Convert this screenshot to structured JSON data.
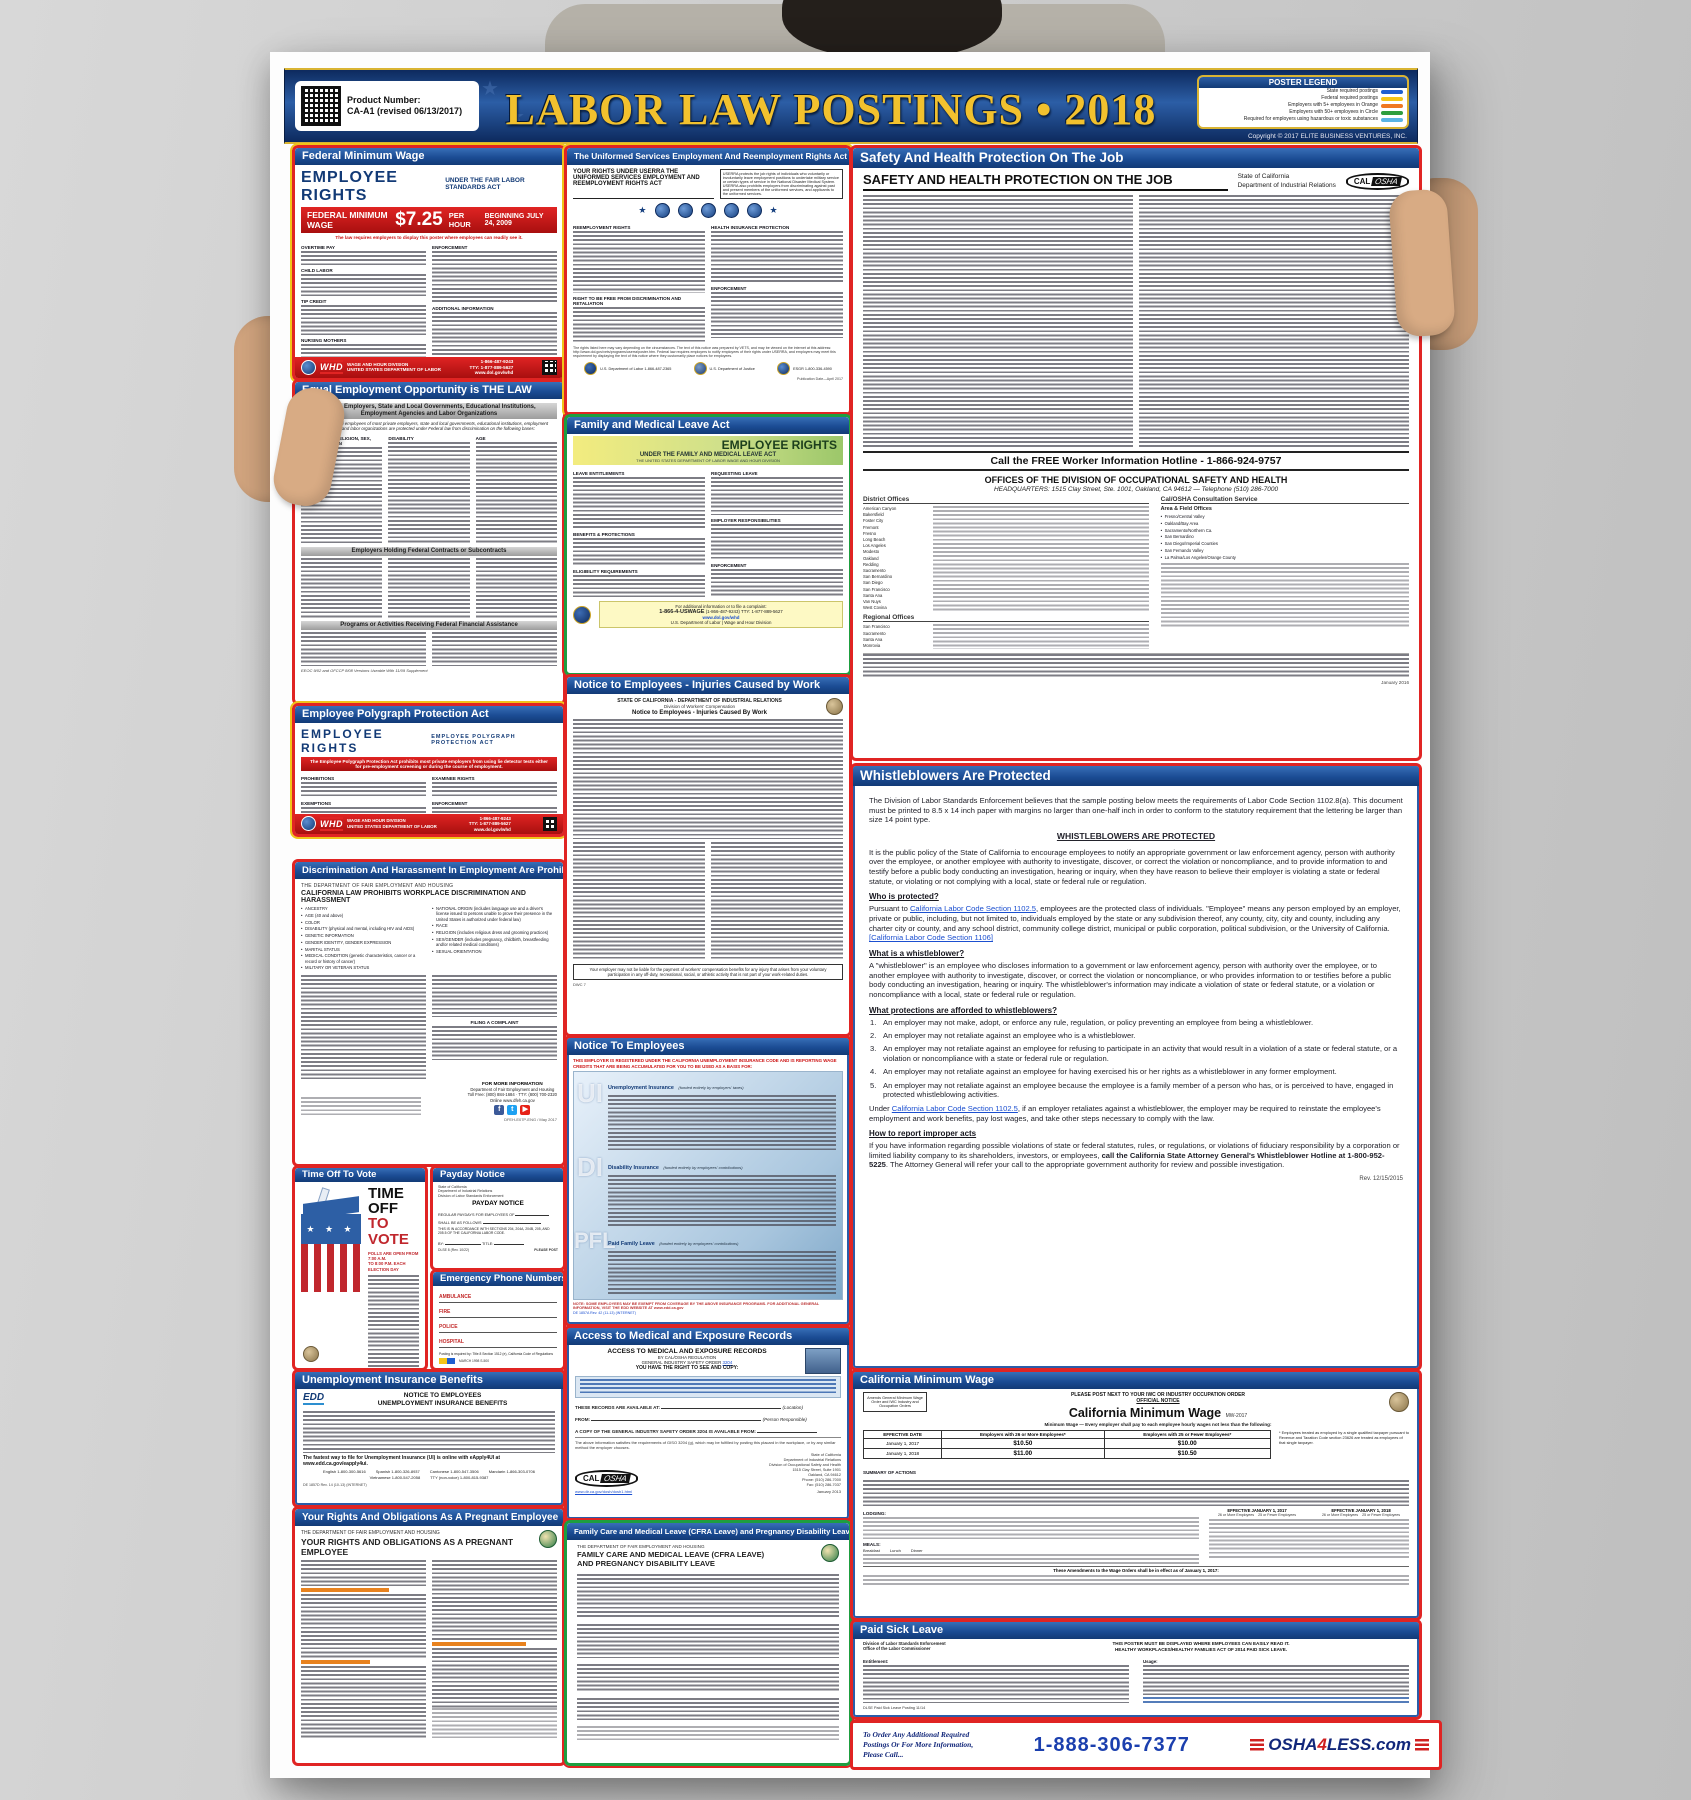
{
  "header": {
    "product_label": "Product Number:",
    "product_number": "CA-A1 (revised 06/13/2017)",
    "title": "LABOR LAW POSTINGS • 2018",
    "copyright": "Copyright © 2017 ELITE BUSINESS VENTURES, INC.",
    "legend": {
      "title": "POSTER LEGEND",
      "items": [
        {
          "label": "State required postings",
          "color": "#1f5fd0"
        },
        {
          "label": "Federal required postings",
          "color": "#f5c518"
        },
        {
          "label": "Employers with 5+ employees in Orange",
          "color": "#f07820"
        },
        {
          "label": "Employers with 50+ employees in Circle",
          "color": "#2e9e3e"
        },
        {
          "label": "Required for employers using hazardous or toxic substances",
          "color": "#5ab4e5"
        }
      ]
    }
  },
  "sections": {
    "fmw": {
      "title": "Federal Minimum Wage",
      "rights": "EMPLOYEE RIGHTS",
      "under": "UNDER THE FAIR LABOR STANDARDS ACT",
      "wage_label": "FEDERAL MINIMUM WAGE",
      "amount": "$7.25",
      "per": "PER HOUR",
      "beginning": "BEGINNING JULY 24, 2009",
      "note": "The law requires employers to display this poster where employees can readily see it.",
      "h_left": [
        "OVERTIME PAY",
        "CHILD LABOR",
        "TIP CREDIT",
        "NURSING MOTHERS"
      ],
      "h_right": [
        "ENFORCEMENT",
        "ADDITIONAL INFORMATION"
      ],
      "agency": "WAGE AND HOUR DIVISION",
      "dept": "UNITED STATES DEPARTMENT OF LABOR",
      "phone": "1-866-487-9243",
      "tty": "TTY: 1-877-889-5627",
      "web": "www.dol.gov/whd",
      "logo": "WHD"
    },
    "eeo": {
      "title": "Equal Employment Opportunity is THE LAW",
      "band1": "Private Employers, State and Local Governments, Educational Institutions, Employment Agencies and Labor Organizations",
      "intro": "Applicants to and employees of most private employers, state and local governments, educational institutions, employment agencies and labor organizations are protected under Federal law from discrimination on the following bases:",
      "h1": [
        "RACE, COLOR, RELIGION, SEX, NATIONAL ORIGIN",
        "DISABILITY",
        "AGE"
      ],
      "band2": "Employers Holding Federal Contracts or Subcontracts",
      "band3": "Programs or Activities Receiving Federal Financial Assistance",
      "footnote": "EEOC 9/02 and OFCCP 8/08 Versions Useable With 11/09 Supplement"
    },
    "poly": {
      "title": "Employee Polygraph Protection Act",
      "rights": "EMPLOYEE RIGHTS",
      "act": "EMPLOYEE POLYGRAPH PROTECTION ACT",
      "banner": "The Employee Polygraph Protection Act prohibits most private employers from using lie detector tests either for pre-employment screening or during the course of employment.",
      "h_left": [
        "PROHIBITIONS",
        "EXEMPTIONS"
      ],
      "h_right": [
        "EXAMINEE RIGHTS",
        "ENFORCEMENT"
      ],
      "display_note": "THE LAW REQUIRES EMPLOYERS TO DISPLAY THIS POSTER WHERE EMPLOYEES AND JOB APPLICANTS CAN READILY SEE IT.",
      "agency": "WAGE AND HOUR DIVISION",
      "dept": "UNITED STATES DEPARTMENT OF LABOR",
      "phone": "1-866-487-9243",
      "tty": "TTY: 1-877-889-5627",
      "web": "www.dol.gov/whd",
      "logo": "WHD"
    },
    "disc": {
      "title": "Discrimination And Harassment In Employment Are Prohibited By Law",
      "dept": "THE DEPARTMENT OF FAIR EMPLOYMENT AND HOUSING",
      "heading": "CALIFORNIA LAW PROHIBITS WORKPLACE DISCRIMINATION AND HARASSMENT",
      "bullets_a": [
        "ANCESTRY",
        "AGE (40 and above)",
        "COLOR",
        "DISABILITY (physical and mental, including HIV and AIDS)",
        "GENETIC INFORMATION",
        "GENDER IDENTITY, GENDER EXPRESSION",
        "MARITAL STATUS",
        "MEDICAL CONDITION (genetic characteristics, cancer or a record or history of cancer)",
        "MILITARY OR VETERAN STATUS"
      ],
      "bullets_b": [
        "NATIONAL ORIGIN (includes language use and a driver's license issued to persons unable to prove their presence in the United States is authorized under federal law)",
        "RACE",
        "RELIGION (includes religious dress and grooming practices)",
        "SEX/GENDER (includes pregnancy, childbirth, breastfeeding and/or related medical conditions)",
        "SEXUAL ORIENTATION"
      ],
      "filing": "FILING A COMPLAINT",
      "info_title": "FOR MORE INFORMATION",
      "info1": "Department of Fair Employment and Housing",
      "info2": "Toll Free: (800) 884-1684",
      "info3": "TTY: (800) 700-2320",
      "info4": "Online www.dfeh.ca.gov",
      "code": "DFEH-E07P-ENG / May 2017"
    },
    "vote": {
      "title": "Time Off To Vote",
      "big1": "TIME OFF",
      "big2": "TO VOTE",
      "polls1": "POLLS ARE OPEN FROM 7:00 A.M.",
      "polls2": "TO 8:00 P.M. EACH ELECTION DAY"
    },
    "payday": {
      "title": "Payday Notice",
      "s1": "State of California",
      "s2": "Department of Industrial Relations",
      "s3": "Division of Labor Standards Enforcement",
      "heading": "PAYDAY NOTICE",
      "line1": "REGULAR PAYDAYS",
      "line1b": "FOR EMPLOYEES OF",
      "line2": "SHALL BE AS FOLLOWS",
      "accordance": "THIS IS IN ACCORDANCE WITH SECTIONS 204, 204A, 204B, 205, AND 205.5 OF THE CALIFORNIA LABOR CODE.",
      "by": "BY:",
      "title_label": "TITLE:",
      "code": "DLSE 8 (Rev. 10/22)",
      "post": "PLEASE POST"
    },
    "emergency": {
      "title": "Emergency Phone Numbers",
      "labels": [
        "AMBULANCE",
        "FIRE",
        "POLICE",
        "HOSPITAL"
      ],
      "note": "Posting is required by: Title 8 Section 1512 (e), California Code of Regulations",
      "code": "MARCH 1998 S-500"
    },
    "unemp": {
      "title": "Unemployment Insurance Benefits",
      "logo": "EDD",
      "heading1": "NOTICE TO EMPLOYEES",
      "heading2": "UNEMPLOYMENT INSURANCE BENEFITS",
      "fastest": "The fastest way to file for Unemployment Insurance (UI) is online with eApply4UI at www.edd.ca.gov/eapply4ui.",
      "phones": [
        "English 1-800-300-5616",
        "Spanish 1-800-326-8937",
        "Cantonese 1-800-547-3506",
        "Mandarin 1-866-303-0706",
        "Vietnamese 1-800-547-2058",
        "TTY (non-voice) 1-800-815-9387"
      ],
      "code": "DE 1857D Rev. 14 (10-13) (INTERNET)"
    },
    "preg": {
      "title": "Your Rights And Obligations As A Pregnant Employee",
      "dept": "THE DEPARTMENT OF FAIR EMPLOYMENT AND HOUSING",
      "heading": "YOUR RIGHTS AND OBLIGATIONS AS A PREGNANT EMPLOYEE"
    },
    "userra": {
      "title": "The Uniformed Services Employment And Reemployment Rights Act",
      "heading": "YOUR RIGHTS UNDER USERRA THE UNIFORMED SERVICES EMPLOYMENT AND REEMPLOYMENT RIGHTS ACT",
      "box": "USERRA protects the job rights of individuals who voluntarily or involuntarily leave employment positions to undertake military service or certain types of service in the National Disaster Medical System. USERRA also prohibits employers from discriminating against past and present members of the uniformed services, and applicants to the uniformed services.",
      "h_left": [
        "REEMPLOYMENT RIGHTS",
        "RIGHT TO BE FREE FROM DISCRIMINATION AND RETALIATION"
      ],
      "h_right": [
        "HEALTH INSURANCE PROTECTION",
        "ENFORCEMENT"
      ],
      "note": "The rights listed here may vary depending on the circumstances. The text of this notice was prepared by VETS, and may be viewed on the internet at this address: http://www.dol.gov/vets/programs/userra/poster.htm. Federal law requires employers to notify employees of their rights under USERRA, and employers may meet this requirement by displaying the text of this notice where they customarily place notices for employees.",
      "seal1": "U.S. Department of Labor 1-866-487-2365",
      "seal2": "U.S. Department of Justice",
      "seal3": "ESGR 1-800-336-4590",
      "pub": "Publication Date—April 2017"
    },
    "fmla": {
      "title": "Family and Medical Leave Act",
      "rights": "EMPLOYEE RIGHTS",
      "under": "UNDER THE FAMILY AND MEDICAL LEAVE ACT",
      "dept": "THE UNITED STATES DEPARTMENT OF LABOR WAGE AND HOUR DIVISION",
      "h_left": [
        "LEAVE ENTITLEMENTS",
        "BENEFITS & PROTECTIONS",
        "ELIGIBILITY REQUIREMENTS"
      ],
      "h_right": [
        "REQUESTING LEAVE",
        "EMPLOYER RESPONSIBILITIES",
        "ENFORCEMENT"
      ],
      "contact_lead": "For additional information or to file a complaint:",
      "phone": "1-866-4-USWAGE",
      "phone2": "(1-866-487-9243)  TTY: 1-877-889-5627",
      "web": "www.dol.gov/whd",
      "dol": "U.S. Department of Labor | Wage and Hour Division"
    },
    "injuries": {
      "title": "Notice to Employees - Injuries Caused by Work",
      "state": "STATE OF CALIFORNIA - DEPARTMENT OF INDUSTRIAL RELATIONS",
      "division": "Division of Workers' Compensation",
      "heading": "Notice to Employees - Injuries Caused By Work",
      "box": "Your employer may not be liable for the payment of workers' compensation benefits for any injury that arises from your voluntary participation in any off-duty, recreational, social, or athletic activity that is not part of your work-related duties.",
      "code": "DWC 7"
    },
    "edd": {
      "title": "Notice To Employees",
      "reg_line": "THIS EMPLOYER IS REGISTERED UNDER THE CALIFORNIA UNEMPLOYMENT INSURANCE CODE AND IS REPORTING WAGE CREDITS THAT ARE BEING ACCUMULATED FOR YOU TO BE USED AS A BASIS FOR:",
      "items": [
        {
          "abbr": "UI",
          "name": "Unemployment Insurance",
          "fund": "(funded entirely by employers' taxes)"
        },
        {
          "abbr": "DI",
          "name": "Disability Insurance",
          "fund": "(funded entirely by employees' contributions)"
        },
        {
          "abbr": "PFL",
          "name": "Paid Family Leave",
          "fund": "(funded entirely by employees' contributions)"
        }
      ],
      "note": "NOTE: SOME EMPLOYEES MAY BE EXEMPT FROM COVERAGE BY THE ABOVE INSURANCE PROGRAMS. FOR ADDITIONAL GENERAL INFORMATION, VISIT THE EDD WEBSITE AT www.edd.ca.gov",
      "code": "DE 1857A Rev. 42 (11-13) (INTERNET)"
    },
    "access": {
      "title": "Access to Medical and Exposure Records",
      "h1": "ACCESS TO MEDICAL AND EXPOSURE RECORDS",
      "h2": "BY CAL/OSHA REGULATION",
      "h3a": "GENERAL INDUSTRY SAFETY ORDER",
      "h3link": "3204",
      "h4": "YOU HAVE THE RIGHT TO SEE AND COPY:",
      "form1": "THESE RECORDS ARE AVAILABLE AT:",
      "loc": "(Location)",
      "form2": "FROM:",
      "resp": "(Person Responsible)",
      "form3": "A COPY OF THE GENERAL INDUSTRY SAFETY ORDER 3204 IS AVAILABLE FROM:",
      "note": "The above information satisfies the requirements of GISO 3204 (g), which may be fulfilled by posting this placard in the workplace, or by any similar method the employer chooses.",
      "agency": [
        "State of California",
        "Department of Industrial Relations",
        "Division of Occupational Safety and Health",
        "1515 Clay Street, Suite 1901",
        "Oakland, CA 94612",
        "Phone: (510) 286-7000",
        "Fax: (510) 286-7037"
      ],
      "web": "www.dir.ca.gov/dosh/dosh1.html",
      "date": "January 2013"
    },
    "cfra": {
      "title": "Family Care and Medical Leave (CFRA Leave) and Pregnancy Disability Leave",
      "dept": "THE DEPARTMENT OF FAIR EMPLOYMENT AND HOUSING",
      "heading1": "FAMILY CARE AND MEDICAL LEAVE (CFRA LEAVE)",
      "heading2": "AND PREGNANCY DISABILITY LEAVE"
    },
    "safety": {
      "title": "Safety And Health Protection On The Job",
      "heading": "SAFETY AND HEALTH PROTECTION ON THE JOB",
      "state1": "State of California",
      "state2": "Department of Industrial Relations",
      "cal": "CAL",
      "osha": "OSHA",
      "hotline": "Call the FREE Worker Information Hotline - 1-866-924-9757",
      "offices_title": "OFFICES OF THE DIVISION OF OCCUPATIONAL SAFETY AND HEALTH",
      "hq": "HEADQUARTERS: 1515 Clay Street, Ste. 1001, Oakland, CA 94612 — Telephone (510) 286-7000",
      "district_label": "District Offices",
      "consult_label": "Cal/OSHA Consultation Service",
      "area_label": "Area & Field Offices",
      "regional_label": "Regional Offices",
      "district_cities": [
        "American Canyon",
        "Bakersfield",
        "Foster City",
        "Fremont",
        "Fresno",
        "Long Beach",
        "Los Angeles",
        "Modesto",
        "Oakland",
        "Redding",
        "Sacramento",
        "San Bernardino",
        "San Diego",
        "San Francisco",
        "Santa Ana",
        "Van Nuys",
        "West Covina"
      ],
      "regional_cities": [
        "San Francisco",
        "Sacramento",
        "Santa Ana",
        "Monrovia"
      ],
      "consult_offices": [
        "Fresno/Central Valley",
        "Oakland/Bay Area",
        "Sacramento/Northern Ca.",
        "San Bernardino",
        "San Diego/Imperial Counties",
        "San Fernando Valley",
        "La Palma/Los Angeles/Orange County"
      ],
      "date": "January 2016"
    },
    "wb": {
      "title": "Whistleblowers Are Protected",
      "intro": "The Division of Labor Standards Enforcement believes that the sample posting below meets the requirements of Labor Code Section 1102.8(a). This document must be printed to 8.5 x 14 inch paper with margins no larger than one-half inch in order to conform to the statutory requirement that the lettering be larger than size 14 point type.",
      "center": "WHISTLEBLOWERS ARE PROTECTED",
      "policy": "It is the public policy of the State of California to encourage employees to notify an appropriate government or law enforcement agency, person with authority over the employee, or another employee with authority to investigate, discover, or correct the violation or noncompliance, and to provide information to and testify before a public body conducting an investigation, hearing or inquiry, when they have reason to believe their employer is violating a state or federal statute, or violating or not complying with a local, state or federal rule or regulation.",
      "q1": "Who is protected?",
      "who_pre": "Pursuant to ",
      "who_link": "California Labor Code Section 1102.5",
      "who_post": ", employees are the protected class of individuals. \"Employee\" means any person employed by an employer, private or public, including, but not limited to, individuals employed by the state or any subdivision thereof, any county, city, city and county, including any charter city or county, and any school district, community college district, municipal or public corporation, political subdivision, or the University of California. ",
      "who_link2": "[California Labor Code Section 1106]",
      "q2": "What is a whistleblower?",
      "what_body": "A \"whistleblower\" is an employee who discloses information to a government or law enforcement agency, person with authority over the employee, or to another employee with authority to investigate, discover, or correct the violation or noncompliance, or who provides information to or testifies before a public body conducting an investigation, hearing or inquiry. The whistleblower's information may indicate a violation of state or federal statute, or a violation or noncompliance with a local, state or federal rule or regulation.",
      "q3": "What protections are afforded to whistleblowers?",
      "protections": [
        "An employer may not make, adopt, or enforce any rule, regulation, or policy preventing an employee from being a whistleblower.",
        "An employer may not retaliate against an employee who is a whistleblower.",
        "An employer may not retaliate against an employee for refusing to participate in an activity that would result in a violation of a state or federal statute, or a violation or noncompliance with a state or federal rule or regulation.",
        "An employer may not retaliate against an employee for having exercised his or her rights as a whistleblower in any former employment.",
        "An employer may not retaliate against an employee because the employee is a family member of a person who has, or is perceived to have, engaged in protected whistleblowing activities."
      ],
      "under_pre": "Under ",
      "under_link": "California Labor Code Section 1102.5",
      "under_post": ", if an employer retaliates against a whistleblower, the employer may be required to reinstate the employee's employment and work benefits, pay lost wages, and take other steps necessary to comply with the law.",
      "q4": "How to report improper acts",
      "how_pre": "If you have information regarding possible violations of state or federal statutes, rules, or regulations, or violations of fiduciary responsibility by a corporation or limited liability company to its shareholders, investors, or employees, ",
      "how_bold": "call the California State Attorney General's Whistleblower Hotline at 1-800-952-5225",
      "how_post": ". The Attorney General will refer your call to the appropriate government authority for review and possible investigation.",
      "rev": "Rev. 12/15/2015"
    },
    "camw": {
      "title": "California Minimum Wage",
      "side_box": "Amends General Minimum Wage Order and IWC Industry and Occupation Orders",
      "post_note": "PLEASE POST NEXT TO YOUR IWC OR INDUSTRY OCCUPATION ORDER",
      "official": "OFFICIAL NOTICE",
      "heading": "California Minimum Wage",
      "code": "MW-2017",
      "sub": "Minimum Wage — Every employer shall pay to each employee hourly wages not less than the following:",
      "table": {
        "headers": [
          "EFFECTIVE DATE",
          "Employers with 26 or More Employees*",
          "Employers with 25 or Fewer Employees*"
        ],
        "rows": [
          [
            "January 1, 2017",
            "$10.50",
            "$10.00"
          ],
          [
            "January 1, 2018",
            "$11.00",
            "$10.50"
          ]
        ]
      },
      "footnote": "* Employees treated as employed by a single qualified taxpayer pursuant to Revenue and Taxation Code section 23626 are treated as employees of that single taxpayer.",
      "summary_label": "SUMMARY OF ACTIONS",
      "eff1": "EFFECTIVE JANUARY 1, 2017",
      "eff2": "EFFECTIVE JANUARY 1, 2018",
      "col26": "26 or More Employees",
      "col25": "25 or Fewer Employees",
      "lodging_label": "LODGING:",
      "meals_label": "MEALS:",
      "meal_rows": [
        "Breakfast",
        "Lunch",
        "Dinner"
      ],
      "amendments": "These Amendments to the Wage Orders shall be in effect as of January 1, 2017:"
    },
    "psl": {
      "title": "Paid Sick Leave",
      "agency1": "Division of Labor Standards Enforcement",
      "agency2": "Office of the Labor Commissioner",
      "must": "THIS POSTER MUST BE DISPLAYED WHERE EMPLOYEES CAN EASILY READ IT.",
      "act": "HEALTHY WORKPLACES/HEALTHY FAMILIES ACT OF 2014 PAID SICK LEAVE.",
      "ent": "Entitlement:",
      "usage": "Usage:",
      "code": "DLSE Paid Sick Leave Posting 11/14"
    },
    "footer": {
      "o1": "To Order Any Additional Required",
      "o2": "Postings Or For More Information,",
      "o3": "Please Call...",
      "phone": "1-888-306-7377",
      "brand_a": "OSHA",
      "brand_4": "4",
      "brand_b": "LESS.com"
    }
  }
}
